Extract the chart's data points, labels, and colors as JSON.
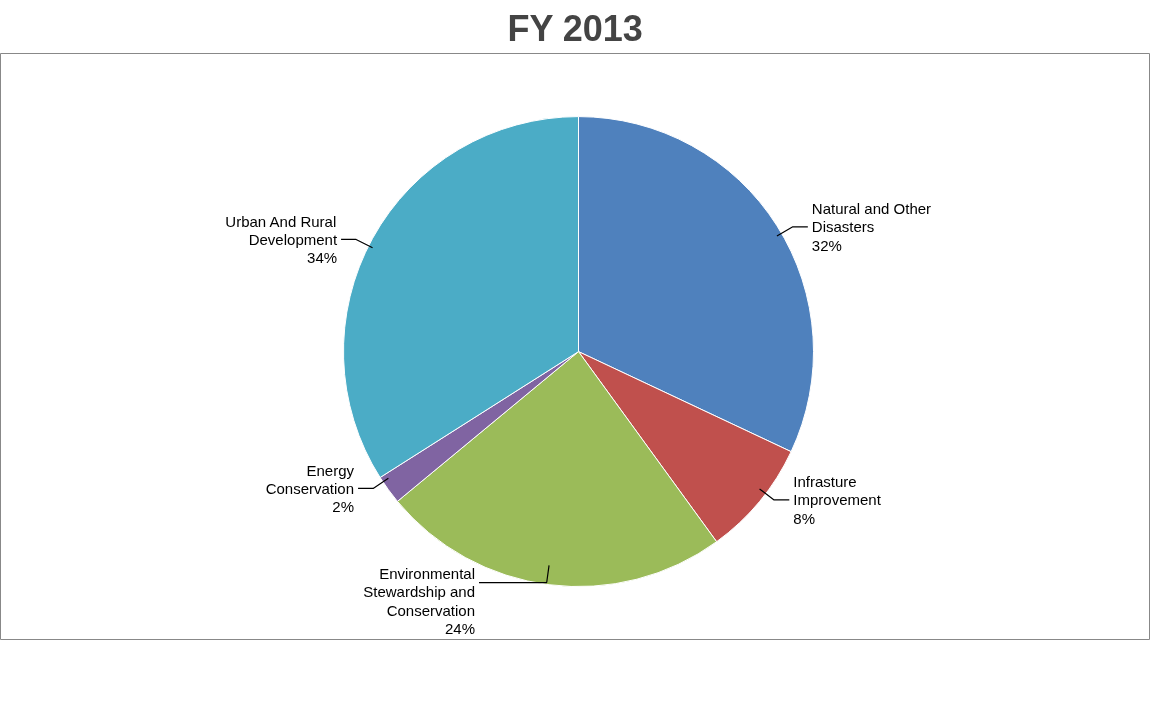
{
  "chart_data": {
    "type": "pie",
    "title": "FY 2013",
    "categories": [
      "Natural and Other Disasters",
      "Infrasture Improvement",
      "Environmental Stewardship and Conservation",
      "Energy Conservation",
      "Urban And Rural Development"
    ],
    "values": [
      32,
      8,
      24,
      2,
      34
    ],
    "value_labels": [
      "32%",
      "8%",
      "24%",
      "2%",
      "34%"
    ],
    "colors": [
      "#4f81bd",
      "#c0504d",
      "#9bbb59",
      "#8064a2",
      "#4bacc6"
    ]
  }
}
